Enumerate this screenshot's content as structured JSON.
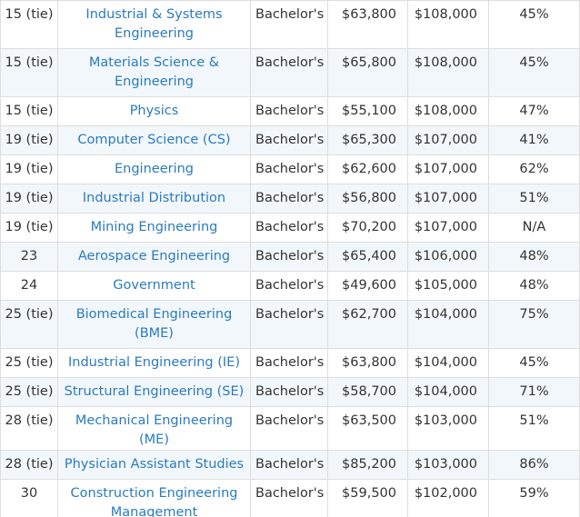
{
  "table": {
    "rows": [
      {
        "rank": "15 (tie)",
        "major": "Industrial & Systems Engineering",
        "degree": "Bachelor's",
        "early_pay": "$63,800",
        "mid_pay": "$108,000",
        "meaning_pct": "45%"
      },
      {
        "rank": "15 (tie)",
        "major": "Materials Science & Engineering",
        "degree": "Bachelor's",
        "early_pay": "$65,800",
        "mid_pay": "$108,000",
        "meaning_pct": "45%"
      },
      {
        "rank": "15 (tie)",
        "major": "Physics",
        "degree": "Bachelor's",
        "early_pay": "$55,100",
        "mid_pay": "$108,000",
        "meaning_pct": "47%"
      },
      {
        "rank": "19 (tie)",
        "major": "Computer Science (CS)",
        "degree": "Bachelor's",
        "early_pay": "$65,300",
        "mid_pay": "$107,000",
        "meaning_pct": "41%"
      },
      {
        "rank": "19 (tie)",
        "major": "Engineering",
        "degree": "Bachelor's",
        "early_pay": "$62,600",
        "mid_pay": "$107,000",
        "meaning_pct": "62%"
      },
      {
        "rank": "19 (tie)",
        "major": "Industrial Distribution",
        "degree": "Bachelor's",
        "early_pay": "$56,800",
        "mid_pay": "$107,000",
        "meaning_pct": "51%"
      },
      {
        "rank": "19 (tie)",
        "major": "Mining Engineering",
        "degree": "Bachelor's",
        "early_pay": "$70,200",
        "mid_pay": "$107,000",
        "meaning_pct": "N/A"
      },
      {
        "rank": "23",
        "major": "Aerospace Engineering",
        "degree": "Bachelor's",
        "early_pay": "$65,400",
        "mid_pay": "$106,000",
        "meaning_pct": "48%"
      },
      {
        "rank": "24",
        "major": "Government",
        "degree": "Bachelor's",
        "early_pay": "$49,600",
        "mid_pay": "$105,000",
        "meaning_pct": "48%"
      },
      {
        "rank": "25 (tie)",
        "major": "Biomedical Engineering (BME)",
        "degree": "Bachelor's",
        "early_pay": "$62,700",
        "mid_pay": "$104,000",
        "meaning_pct": "75%"
      },
      {
        "rank": "25 (tie)",
        "major": "Industrial Engineering (IE)",
        "degree": "Bachelor's",
        "early_pay": "$63,800",
        "mid_pay": "$104,000",
        "meaning_pct": "45%"
      },
      {
        "rank": "25 (tie)",
        "major": "Structural Engineering (SE)",
        "degree": "Bachelor's",
        "early_pay": "$58,700",
        "mid_pay": "$104,000",
        "meaning_pct": "71%"
      },
      {
        "rank": "28 (tie)",
        "major": "Mechanical Engineering (ME)",
        "degree": "Bachelor's",
        "early_pay": "$63,500",
        "mid_pay": "$103,000",
        "meaning_pct": "51%"
      },
      {
        "rank": "28 (tie)",
        "major": "Physician Assistant Studies",
        "degree": "Bachelor's",
        "early_pay": "$85,200",
        "mid_pay": "$103,000",
        "meaning_pct": "86%"
      },
      {
        "rank": "30",
        "major": "Construction Engineering Management",
        "degree": "Bachelor's",
        "early_pay": "$59,500",
        "mid_pay": "$102,000",
        "meaning_pct": "59%"
      }
    ]
  },
  "colors": {
    "link": "#2a7bbf",
    "text": "#333333",
    "border": "#dddddd",
    "stripe": "#f2f7fb"
  }
}
